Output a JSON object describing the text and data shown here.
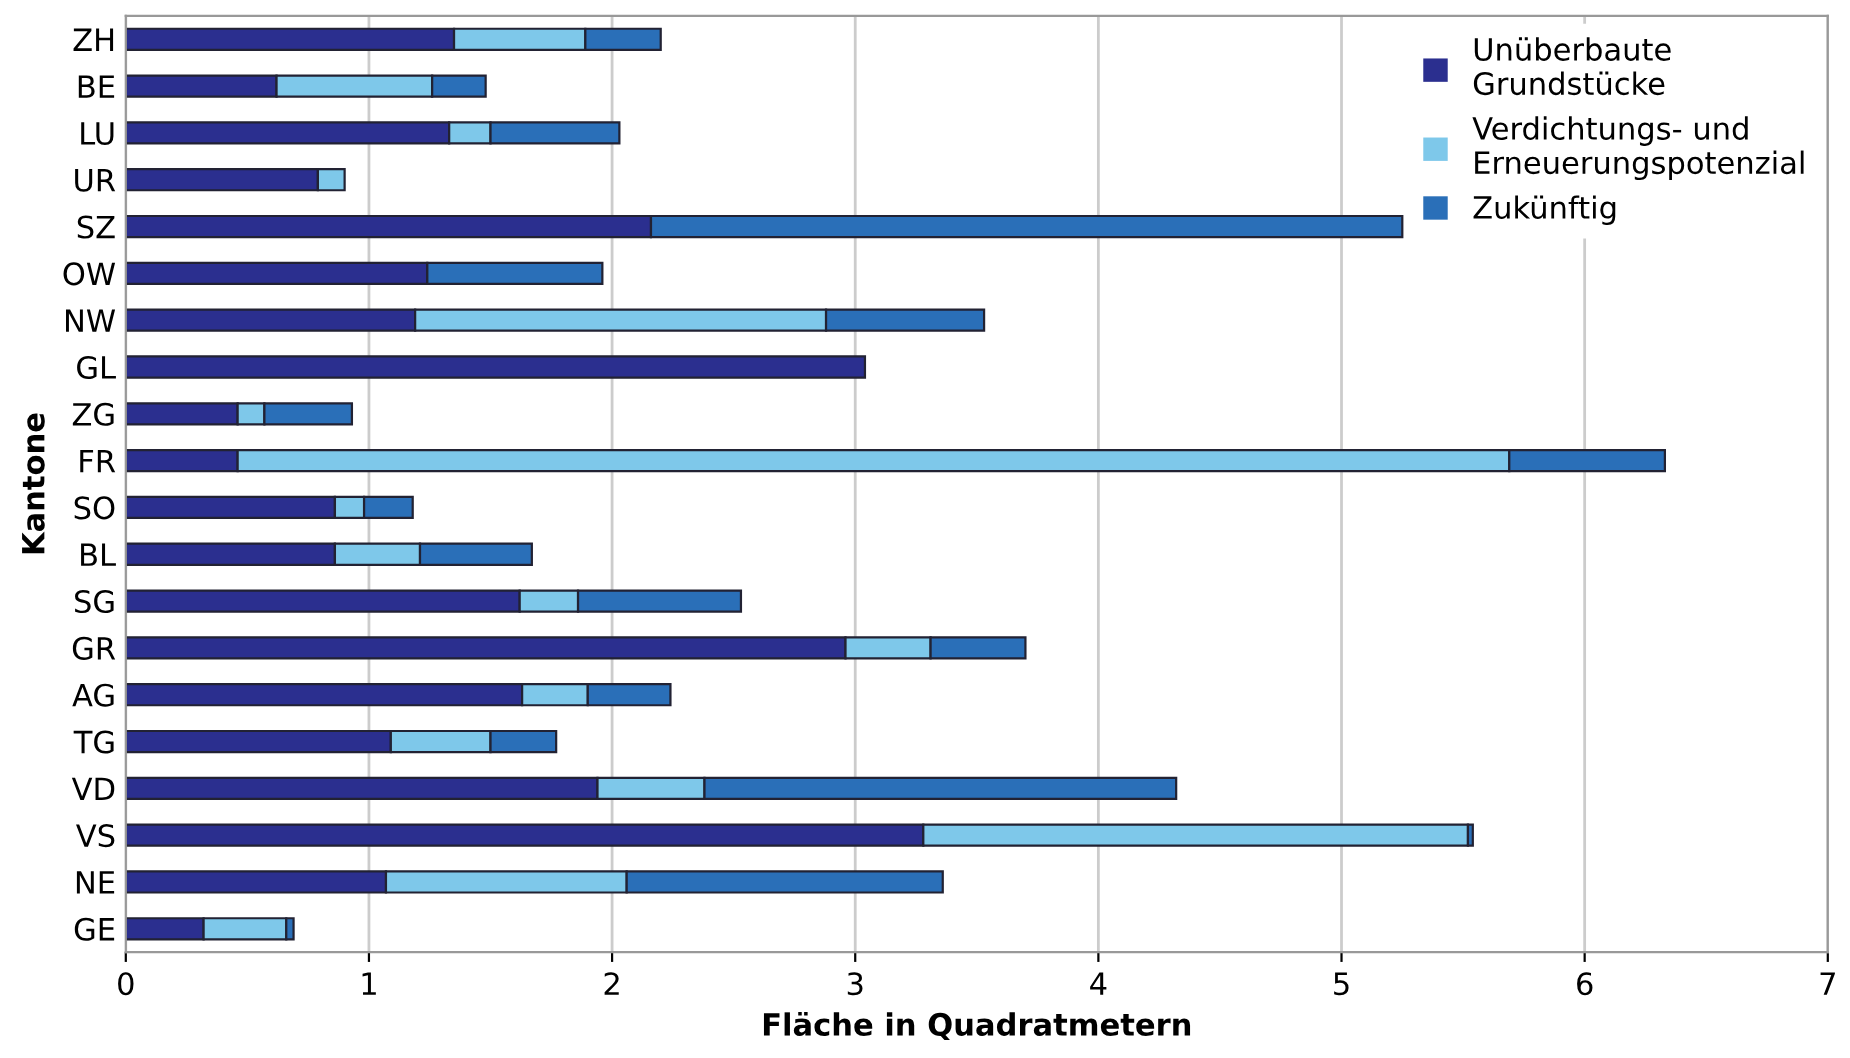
{
  "chart_data": {
    "type": "bar",
    "orientation": "horizontal",
    "stacked": true,
    "xlabel": "Fläche in Quadratmetern",
    "ylabel": "Kantone",
    "categories": [
      "ZH",
      "BE",
      "LU",
      "UR",
      "SZ",
      "OW",
      "NW",
      "GL",
      "ZG",
      "FR",
      "SO",
      "BL",
      "SG",
      "GR",
      "AG",
      "TG",
      "VD",
      "VS",
      "NE",
      "GE"
    ],
    "series": [
      {
        "name": "Unüberbaute Grundstücke",
        "color": "#2b2f8f",
        "values": [
          1.35,
          0.62,
          1.33,
          0.79,
          2.16,
          1.24,
          1.19,
          3.04,
          0.46,
          0.46,
          0.86,
          0.86,
          1.62,
          2.96,
          1.63,
          1.09,
          1.94,
          3.28,
          1.07,
          0.32
        ]
      },
      {
        "name": "Verdichtungs- und Erneuerungspotenzial",
        "color": "#7ec8ea",
        "values": [
          0.54,
          0.64,
          0.17,
          0.11,
          0,
          0,
          1.69,
          0,
          0.11,
          5.23,
          0.12,
          0.35,
          0.24,
          0.35,
          0.27,
          0.41,
          0.44,
          2.24,
          0.99,
          0.34
        ]
      },
      {
        "name": "Zukünftig",
        "color": "#2a6fb8",
        "values": [
          0.31,
          0.22,
          0.53,
          0,
          3.09,
          0.72,
          0.65,
          0,
          0.36,
          0.64,
          0.2,
          0.46,
          0.67,
          0.39,
          0.34,
          0.27,
          1.94,
          0.02,
          1.3,
          0.03
        ]
      }
    ],
    "xlim": [
      0,
      7
    ],
    "xticks": [
      0,
      1,
      2,
      3,
      4,
      5,
      6,
      7
    ],
    "grid": "x",
    "legend": "top right"
  }
}
